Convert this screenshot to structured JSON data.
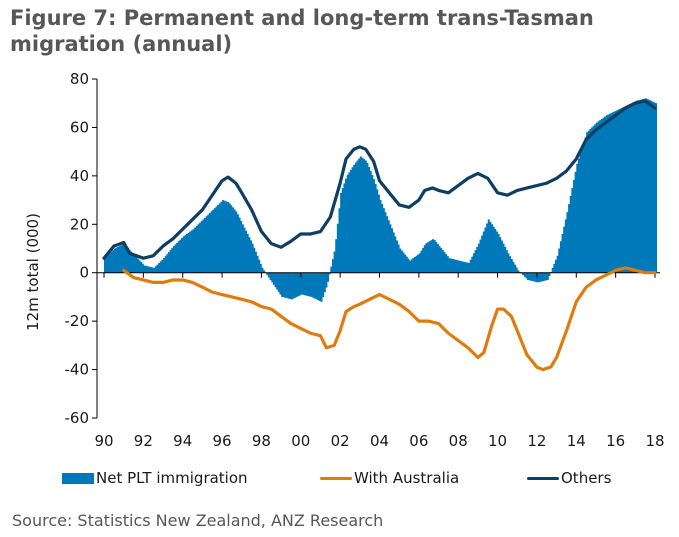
{
  "figure": {
    "title": "Figure 7: Permanent and long-term trans-Tasman migration (annual)",
    "source": "Source: Statistics New Zealand, ANZ Research"
  },
  "colors": {
    "net_plt": "#0079BA",
    "with_australia": "#E07B0E",
    "others": "#0E3F63",
    "axis": "#000000"
  },
  "legend": [
    {
      "label": "Net PLT immigration",
      "kind": "area"
    },
    {
      "label": "With Australia",
      "kind": "line"
    },
    {
      "label": "Others",
      "kind": "line"
    }
  ],
  "chart_data": {
    "type": "area",
    "title": "Figure 7: Permanent and long-term trans-Tasman migration (annual)",
    "xlabel": "",
    "ylabel": "12m total (000)",
    "ylim": [
      -60,
      80
    ],
    "yticks": [
      80,
      60,
      40,
      20,
      0,
      -20,
      -40,
      -60
    ],
    "xlim": [
      1990,
      2018.2
    ],
    "xticks": [
      {
        "value": 1990,
        "label": "90"
      },
      {
        "value": 1992,
        "label": "92"
      },
      {
        "value": 1994,
        "label": "94"
      },
      {
        "value": 1996,
        "label": "96"
      },
      {
        "value": 1998,
        "label": "98"
      },
      {
        "value": 2000,
        "label": "00"
      },
      {
        "value": 2002,
        "label": "02"
      },
      {
        "value": 2004,
        "label": "04"
      },
      {
        "value": 2006,
        "label": "06"
      },
      {
        "value": 2008,
        "label": "08"
      },
      {
        "value": 2010,
        "label": "10"
      },
      {
        "value": 2012,
        "label": "12"
      },
      {
        "value": 2014,
        "label": "14"
      },
      {
        "value": 2016,
        "label": "16"
      },
      {
        "value": 2018,
        "label": "18"
      }
    ],
    "grid": false,
    "legend_position": "bottom",
    "series": [
      {
        "name": "Net PLT immigration",
        "type": "area",
        "x": [
          1990.0,
          1990.5,
          1991.0,
          1991.3,
          1992.0,
          1992.5,
          1993.0,
          1993.5,
          1994.0,
          1994.5,
          1995.0,
          1995.5,
          1996.0,
          1996.3,
          1996.7,
          1997.0,
          1997.5,
          1998.0,
          1998.5,
          1999.0,
          1999.5,
          2000.0,
          2000.5,
          2001.0,
          2001.3,
          2001.7,
          2002.0,
          2002.3,
          2002.7,
          2003.0,
          2003.3,
          2003.7,
          2004.0,
          2004.5,
          2005.0,
          2005.5,
          2006.0,
          2006.3,
          2006.7,
          2007.0,
          2007.5,
          2008.0,
          2008.5,
          2009.0,
          2009.5,
          2010.0,
          2010.5,
          2011.0,
          2011.5,
          2012.0,
          2012.5,
          2013.0,
          2013.5,
          2014.0,
          2014.5,
          2015.0,
          2015.5,
          2016.0,
          2016.5,
          2017.0,
          2017.5,
          2018.0
        ],
        "values": [
          6,
          10,
          12,
          9,
          3,
          2,
          6,
          11,
          15,
          18,
          22,
          26,
          30,
          29,
          25,
          20,
          12,
          2,
          -4,
          -10,
          -11,
          -9,
          -10,
          -12,
          -5,
          10,
          33,
          40,
          45,
          48,
          46,
          38,
          30,
          20,
          10,
          5,
          8,
          12,
          14,
          11,
          6,
          5,
          4,
          12,
          22,
          16,
          8,
          1,
          -3,
          -4,
          -3,
          7,
          25,
          45,
          58,
          62,
          65,
          67,
          69,
          71,
          72,
          70
        ]
      },
      {
        "name": "With Australia",
        "type": "line",
        "x": [
          1991.0,
          1991.5,
          1992.0,
          1992.5,
          1993.0,
          1993.5,
          1994.0,
          1994.5,
          1995.0,
          1995.5,
          1996.0,
          1996.5,
          1997.0,
          1997.5,
          1998.0,
          1998.5,
          1999.0,
          1999.5,
          2000.0,
          2000.5,
          2001.0,
          2001.3,
          2001.7,
          2002.0,
          2002.3,
          2002.7,
          2003.0,
          2003.5,
          2004.0,
          2004.5,
          2005.0,
          2005.5,
          2006.0,
          2006.5,
          2007.0,
          2007.5,
          2008.0,
          2008.5,
          2009.0,
          2009.3,
          2009.7,
          2010.0,
          2010.3,
          2010.7,
          2011.0,
          2011.5,
          2012.0,
          2012.3,
          2012.7,
          2013.0,
          2013.5,
          2014.0,
          2014.5,
          2015.0,
          2015.5,
          2016.0,
          2016.5,
          2017.0,
          2017.5,
          2018.0
        ],
        "values": [
          1,
          -2,
          -3,
          -4,
          -4,
          -3,
          -3,
          -4,
          -6,
          -8,
          -9,
          -10,
          -11,
          -12,
          -14,
          -15,
          -18,
          -21,
          -23,
          -25,
          -26,
          -31,
          -30,
          -24,
          -16,
          -14,
          -13,
          -11,
          -9,
          -11,
          -13,
          -16,
          -20,
          -20,
          -21,
          -25,
          -28,
          -31,
          -35,
          -33,
          -22,
          -15,
          -15,
          -18,
          -24,
          -34,
          -39,
          -40,
          -39,
          -35,
          -24,
          -12,
          -6,
          -3,
          -1,
          1,
          2,
          1,
          0,
          0
        ]
      },
      {
        "name": "Others",
        "type": "line",
        "x": [
          1990.0,
          1990.5,
          1991.0,
          1991.3,
          1992.0,
          1992.5,
          1993.0,
          1993.5,
          1994.0,
          1994.5,
          1995.0,
          1995.5,
          1996.0,
          1996.3,
          1996.7,
          1997.0,
          1997.5,
          1998.0,
          1998.5,
          1999.0,
          1999.5,
          2000.0,
          2000.5,
          2001.0,
          2001.5,
          2002.0,
          2002.3,
          2002.7,
          2003.0,
          2003.3,
          2003.7,
          2004.0,
          2004.5,
          2005.0,
          2005.5,
          2006.0,
          2006.3,
          2006.7,
          2007.0,
          2007.5,
          2008.0,
          2008.5,
          2009.0,
          2009.5,
          2010.0,
          2010.5,
          2011.0,
          2011.5,
          2012.0,
          2012.5,
          2013.0,
          2013.5,
          2014.0,
          2014.5,
          2015.0,
          2015.5,
          2016.0,
          2016.5,
          2017.0,
          2017.5,
          2018.0
        ],
        "values": [
          6,
          11,
          12.5,
          8,
          6,
          7,
          11,
          14,
          18,
          22,
          26,
          32,
          38,
          39.5,
          37,
          33,
          26,
          17,
          12,
          10.5,
          13,
          16,
          16,
          17,
          23,
          37,
          47,
          51,
          52,
          51,
          46,
          38,
          33,
          28,
          27,
          30,
          34,
          35,
          34,
          33,
          36,
          39,
          41,
          39,
          33,
          32,
          34,
          35,
          36,
          37,
          39,
          42,
          47,
          55,
          59,
          62,
          65,
          68,
          70,
          71,
          68
        ]
      }
    ]
  }
}
